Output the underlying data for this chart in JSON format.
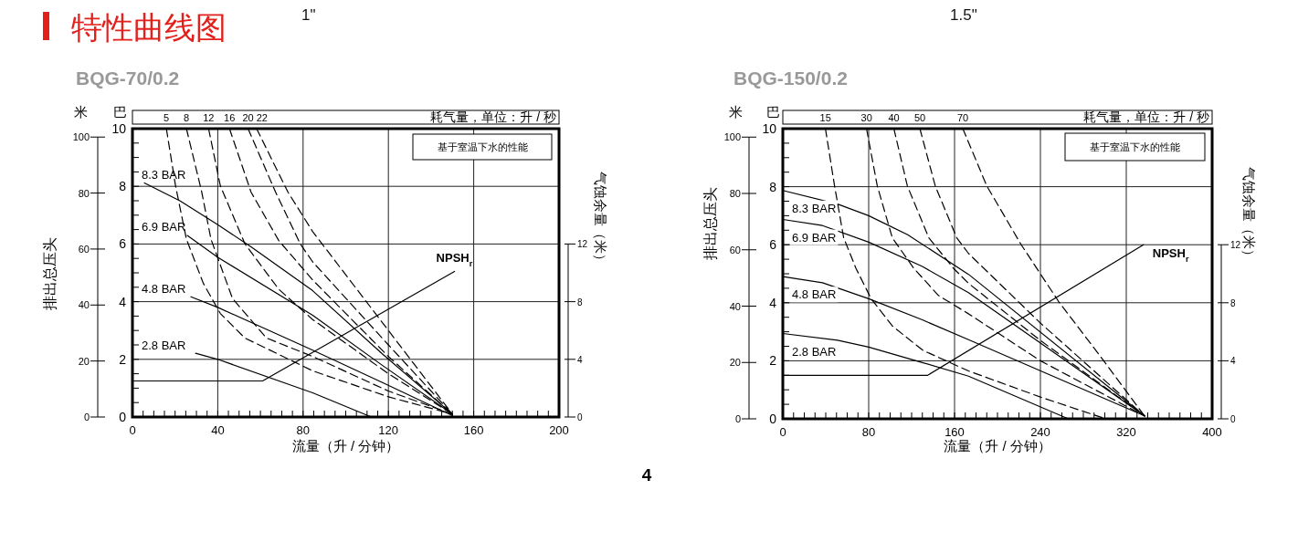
{
  "chart_data": [
    {
      "type": "line",
      "title": "BQG-70/0.2",
      "subtitle": "1\"",
      "xlabel": "流量（升 / 分钟）",
      "ylabel": "巴",
      "y2label": "排出总压头",
      "y3label": "气蚀余量（米）",
      "legend_title": "耗气量，单位：升 / 秒",
      "annotations": [
        "特性曲线图",
        "米",
        "基于室温下水的性能",
        "4"
      ],
      "xlim": [
        0,
        200
      ],
      "xticks": [
        0,
        {
          "value": 5,
          "label": null
        },
        {
          "value": 10,
          "label": null
        },
        {
          "value": 15,
          "label": null
        },
        {
          "value": 20,
          "label": null
        },
        {
          "value": 25,
          "label": null
        },
        {
          "value": 30,
          "label": null
        },
        {
          "value": 35,
          "label": null
        },
        40,
        {
          "value": 45,
          "label": null
        },
        {
          "value": 50,
          "label": null
        },
        {
          "value": 55,
          "label": null
        },
        {
          "value": 60,
          "label": null
        },
        {
          "value": 65,
          "label": null
        },
        {
          "value": 70,
          "label": null
        },
        {
          "value": 75,
          "label": null
        },
        80,
        {
          "value": 85,
          "label": null
        },
        {
          "value": 90,
          "label": null
        },
        {
          "value": 95,
          "label": null
        },
        {
          "value": 100,
          "label": null
        },
        {
          "value": 105,
          "label": null
        },
        {
          "value": 110,
          "label": null
        },
        {
          "value": 115,
          "label": null
        },
        120,
        {
          "value": 125,
          "label": null
        },
        {
          "value": 130,
          "label": null
        },
        {
          "value": 135,
          "label": null
        },
        {
          "value": 140,
          "label": null
        },
        {
          "value": 145,
          "label": null
        },
        {
          "value": 150,
          "label": null
        },
        {
          "value": 155,
          "label": null
        },
        160,
        {
          "value": 165,
          "label": null
        },
        {
          "value": 170,
          "label": null
        },
        {
          "value": 175,
          "label": null
        },
        {
          "value": 180,
          "label": null
        },
        {
          "value": 185,
          "label": null
        },
        {
          "value": 190,
          "label": null
        },
        {
          "value": 195,
          "label": null
        },
        200
      ],
      "ylim": [
        0,
        10
      ],
      "yticks": [
        0,
        {
          "value": 0.5,
          "label": null
        },
        {
          "value": 1,
          "label": null
        },
        {
          "value": 1.5,
          "label": null
        },
        2,
        {
          "value": 2.5,
          "label": null
        },
        {
          "value": 3,
          "label": null
        },
        {
          "value": 3.5,
          "label": null
        },
        4,
        {
          "value": 4.5,
          "label": null
        },
        {
          "value": 5,
          "label": null
        },
        {
          "value": 5.5,
          "label": null
        },
        6,
        {
          "value": 6.5,
          "label": null
        },
        {
          "value": 7,
          "label": null
        },
        {
          "value": 7.5,
          "label": null
        },
        8,
        {
          "value": 8.5,
          "label": null
        },
        {
          "value": 9,
          "label": null
        },
        {
          "value": 9.5,
          "label": null
        },
        10
      ],
      "y2lim": [
        0,
        103
      ],
      "y2ticks": [
        0,
        20,
        40,
        60,
        80,
        100
      ],
      "y3lim": [
        0,
        20
      ],
      "y3ticks": [
        0,
        4,
        8,
        12
      ],
      "grid": true,
      "series": [
        {
          "name": "8.3 BAR",
          "color": "#000000",
          "line_style": "solid",
          "x": [
            5.6,
            22.4,
            40,
            55.6,
            84.5,
            117,
            150
          ],
          "values": [
            8.12,
            7.49,
            6.67,
            5.9,
            4.38,
            2.2,
            0.1
          ]
        },
        {
          "name": "6.9 BAR",
          "color": "#000000",
          "line_style": "solid",
          "x": [
            25.7,
            40,
            84.5,
            117,
            150
          ],
          "values": [
            6.3,
            5.54,
            3.53,
            1.8,
            0.1
          ]
        },
        {
          "name": "4.8 BAR",
          "color": "#000000",
          "line_style": "solid",
          "x": [
            27.4,
            40,
            84.5,
            117,
            150
          ],
          "values": [
            4.17,
            3.8,
            2.32,
            1.2,
            0.05
          ]
        },
        {
          "name": "2.8 BAR",
          "color": "#000000",
          "line_style": "solid",
          "x": [
            29.6,
            40,
            84.5,
            112
          ],
          "values": [
            2.21,
            2.0,
            0.84,
            0
          ]
        },
        {
          "name": "5",
          "color": "#000000",
          "line_style": "dashed",
          "x": [
            15.9,
            20.2,
            25.3,
            33.2,
            41.2,
            52.7,
            84.5,
            120,
            150
          ],
          "values": [
            10,
            8.02,
            6.17,
            4.64,
            3.59,
            2.74,
            1.6,
            0.7,
            0.1
          ]
        },
        {
          "name": "8",
          "color": "#000000",
          "line_style": "dashed",
          "x": [
            25.3,
            32.5,
            36.8,
            46.9,
            62.8,
            84.5,
            120,
            150
          ],
          "values": [
            10,
            7.8,
            6.17,
            4.11,
            2.74,
            2.1,
            0.9,
            0.1
          ]
        },
        {
          "name": "12",
          "color": "#000000",
          "line_style": "dashed",
          "x": [
            35.7,
            41.2,
            52.7,
            68.6,
            84.5,
            120,
            150
          ],
          "values": [
            10,
            8.02,
            6.01,
            4.43,
            3.38,
            1.5,
            0.1
          ]
        },
        {
          "name": "16",
          "color": "#000000",
          "line_style": "dashed",
          "x": [
            45.5,
            55.6,
            68.6,
            84.5,
            120,
            150
          ],
          "values": [
            10,
            7.8,
            6.12,
            4.75,
            2.1,
            0.1
          ]
        },
        {
          "name": "20",
          "color": "#000000",
          "line_style": "dashed",
          "x": [
            54.2,
            67.1,
            78.7,
            84.5,
            120,
            150
          ],
          "values": [
            10,
            7.8,
            6.0,
            5.38,
            2.5,
            0.1
          ]
        },
        {
          "name": "22",
          "color": "#000000",
          "line_style": "dashed",
          "x": [
            58.2,
            72.9,
            84.5,
            120,
            150
          ],
          "values": [
            10,
            7.8,
            6.43,
            3.0,
            0.1
          ]
        },
        {
          "name": "NPSH$_{r}$",
          "color": "#000000",
          "line_style": "solid",
          "axis": "y3",
          "x": [
            0,
            61,
            151
          ],
          "values": [
            2.5,
            2.5,
            10.1
          ]
        }
      ]
    },
    {
      "type": "line",
      "title": "BQG-150/0.2",
      "subtitle": "1.5\"",
      "xlabel": "流量（升 / 分钟）",
      "ylabel": "巴",
      "y2label": "排出总压头",
      "y3label": "气蚀余量（米）",
      "legend_title": "耗气量，单位：升 / 秒",
      "annotations": [
        "米",
        "基于室温下水的性能"
      ],
      "xlim": [
        0,
        400
      ],
      "xticks": [
        0,
        {
          "value": 10,
          "label": null
        },
        {
          "value": 20,
          "label": null
        },
        {
          "value": 30,
          "label": null
        },
        {
          "value": 40,
          "label": null
        },
        {
          "value": 50,
          "label": null
        },
        {
          "value": 60,
          "label": null
        },
        {
          "value": 70,
          "label": null
        },
        80,
        {
          "value": 90,
          "label": null
        },
        {
          "value": 100,
          "label": null
        },
        {
          "value": 110,
          "label": null
        },
        {
          "value": 120,
          "label": null
        },
        {
          "value": 130,
          "label": null
        },
        {
          "value": 140,
          "label": null
        },
        {
          "value": 150,
          "label": null
        },
        160,
        {
          "value": 170,
          "label": null
        },
        {
          "value": 180,
          "label": null
        },
        {
          "value": 190,
          "label": null
        },
        {
          "value": 200,
          "label": null
        },
        {
          "value": 210,
          "label": null
        },
        {
          "value": 220,
          "label": null
        },
        {
          "value": 230,
          "label": null
        },
        240,
        {
          "value": 250,
          "label": null
        },
        {
          "value": 260,
          "label": null
        },
        {
          "value": 270,
          "label": null
        },
        {
          "value": 280,
          "label": null
        },
        {
          "value": 290,
          "label": null
        },
        {
          "value": 300,
          "label": null
        },
        {
          "value": 310,
          "label": null
        },
        320,
        {
          "value": 330,
          "label": null
        },
        {
          "value": 340,
          "label": null
        },
        {
          "value": 350,
          "label": null
        },
        {
          "value": 360,
          "label": null
        },
        {
          "value": 370,
          "label": null
        },
        {
          "value": 380,
          "label": null
        },
        {
          "value": 390,
          "label": null
        },
        400
      ],
      "ylim": [
        0,
        10
      ],
      "yticks": [
        0,
        {
          "value": 0.5,
          "label": null
        },
        {
          "value": 1,
          "label": null
        },
        {
          "value": 1.5,
          "label": null
        },
        2,
        {
          "value": 2.5,
          "label": null
        },
        {
          "value": 3,
          "label": null
        },
        {
          "value": 3.5,
          "label": null
        },
        4,
        {
          "value": 4.5,
          "label": null
        },
        {
          "value": 5,
          "label": null
        },
        {
          "value": 5.5,
          "label": null
        },
        6,
        {
          "value": 6.5,
          "label": null
        },
        {
          "value": 7,
          "label": null
        },
        {
          "value": 7.5,
          "label": null
        },
        8,
        {
          "value": 8.5,
          "label": null
        },
        {
          "value": 9,
          "label": null
        },
        {
          "value": 9.5,
          "label": null
        },
        10
      ],
      "y2lim": [
        0,
        103
      ],
      "y2ticks": [
        0,
        20,
        40,
        60,
        80,
        100
      ],
      "y3lim": [
        0,
        20
      ],
      "y3ticks": [
        0,
        4,
        8,
        12
      ],
      "grid": true,
      "series": [
        {
          "name": "8.3 BAR",
          "color": "#000000",
          "line_style": "solid",
          "x": [
            0,
            51,
            80,
            116,
            173,
            337
          ],
          "values": [
            7.87,
            7.4,
            7.0,
            6.35,
            4.98,
            0.1
          ]
        },
        {
          "name": "6.9 BAR",
          "color": "#000000",
          "line_style": "solid",
          "x": [
            0,
            37,
            80,
            130,
            173,
            337
          ],
          "values": [
            6.87,
            6.66,
            6.09,
            5.25,
            4.35,
            0.1
          ]
        },
        {
          "name": "4.8 BAR",
          "color": "#000000",
          "line_style": "solid",
          "x": [
            0,
            37,
            80,
            130,
            173,
            337
          ],
          "values": [
            4.9,
            4.69,
            4.14,
            3.41,
            2.73,
            0.1
          ]
        },
        {
          "name": "2.8 BAR",
          "color": "#000000",
          "line_style": "solid",
          "x": [
            0,
            51,
            80,
            130,
            173,
            266
          ],
          "values": [
            2.94,
            2.71,
            2.47,
            1.94,
            1.47,
            0
          ]
        },
        {
          "name": "15",
          "color": "#000000",
          "line_style": "dashed",
          "x": [
            39.7,
            48.2,
            56.7,
            68.1,
            82.3,
            102,
            130.5,
            173,
            240,
            301
          ],
          "values": [
            10,
            8.03,
            6.24,
            5.19,
            4.14,
            3.2,
            2.36,
            1.65,
            0.75,
            0
          ]
        },
        {
          "name": "30",
          "color": "#000000",
          "line_style": "dashed",
          "x": [
            78,
            88,
            102,
            122,
            145,
            173,
            240,
            337
          ],
          "values": [
            10,
            8.03,
            6.24,
            5.19,
            4.25,
            3.62,
            2.0,
            0.1
          ]
        },
        {
          "name": "40",
          "color": "#000000",
          "line_style": "dashed",
          "x": [
            103.5,
            116,
            136,
            159,
            173,
            240,
            337
          ],
          "values": [
            10,
            8.03,
            6.24,
            5.19,
            4.67,
            2.7,
            0.1
          ]
        },
        {
          "name": "50",
          "color": "#000000",
          "line_style": "dashed",
          "x": [
            127.7,
            142,
            162,
            173,
            240,
            337
          ],
          "values": [
            10,
            8.03,
            6.24,
            5.7,
            3.3,
            0.1
          ]
        },
        {
          "name": "70",
          "color": "#000000",
          "line_style": "dashed",
          "x": [
            167.7,
            190,
            221.6,
            257,
            298,
            337
          ],
          "values": [
            10,
            8.03,
            6.03,
            4.04,
            2.05,
            0.1
          ]
        },
        {
          "name": "NPSH$_{r}$",
          "color": "#000000",
          "line_style": "solid",
          "axis": "y3",
          "x": [
            0,
            135,
            336
          ],
          "values": [
            3.0,
            3.0,
            12.0
          ]
        }
      ]
    }
  ]
}
